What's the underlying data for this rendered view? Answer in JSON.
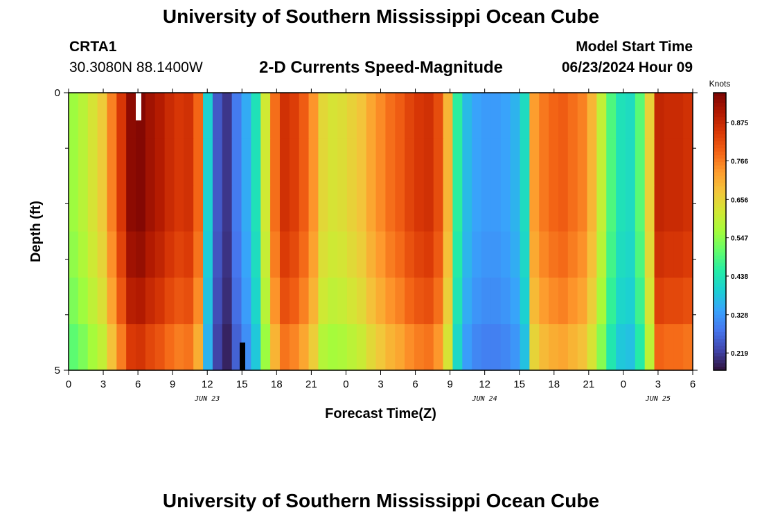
{
  "header": {
    "main_title": "University of Southern Mississippi Ocean Cube",
    "footer_title": "University of Southern Mississippi Ocean Cube",
    "station_id": "CRTA1",
    "station_coords": "30.3080N  88.1400W",
    "chart_title": "2-D Currents Speed-Magnitude",
    "model_start_label": "Model Start Time",
    "model_start_value": "06/23/2024 Hour 09"
  },
  "colors": {
    "colormap": [
      "#30123b",
      "#4145ab",
      "#4675ed",
      "#39a2fc",
      "#1bcfd4",
      "#24eca6",
      "#61fc6c",
      "#a4fc3b",
      "#d1e834",
      "#f3c63a",
      "#fe9b2d",
      "#f36315",
      "#d93806",
      "#b11901",
      "#7a0403"
    ]
  },
  "chart_data": {
    "type": "heatmap",
    "title": "2-D Currents Speed-Magnitude",
    "xlabel": "Forecast Time(Z)",
    "ylabel": "Depth (ft)",
    "colorbar_title": "Knots",
    "colorbar_ticks": [
      0.219,
      0.328,
      0.438,
      0.547,
      0.656,
      0.766,
      0.875
    ],
    "value_range": [
      0.17,
      0.96
    ],
    "x_hours_range": [
      0,
      54
    ],
    "y_range": [
      0,
      5
    ],
    "y_ticks": [
      0,
      5
    ],
    "y_minor_ticks": [
      1,
      2,
      3,
      4
    ],
    "x_ticks": [
      {
        "hour": 0,
        "label": "0"
      },
      {
        "hour": 3,
        "label": "3"
      },
      {
        "hour": 6,
        "label": "6"
      },
      {
        "hour": 9,
        "label": "9"
      },
      {
        "hour": 12,
        "label": "12"
      },
      {
        "hour": 15,
        "label": "15"
      },
      {
        "hour": 18,
        "label": "18"
      },
      {
        "hour": 21,
        "label": "21"
      },
      {
        "hour": 24,
        "label": "0"
      },
      {
        "hour": 27,
        "label": "3"
      },
      {
        "hour": 30,
        "label": "6"
      },
      {
        "hour": 33,
        "label": "9"
      },
      {
        "hour": 36,
        "label": "12"
      },
      {
        "hour": 39,
        "label": "15"
      },
      {
        "hour": 42,
        "label": "18"
      },
      {
        "hour": 45,
        "label": "21"
      },
      {
        "hour": 48,
        "label": "0"
      },
      {
        "hour": 51,
        "label": "3"
      },
      {
        "hour": 54,
        "label": "6"
      }
    ],
    "date_labels": [
      {
        "hour": 12,
        "label": "JUN 23"
      },
      {
        "hour": 36,
        "label": "JUN 24"
      },
      {
        "hour": 51,
        "label": "JUN 25"
      }
    ],
    "depth_layer_factors": [
      1.0,
      1.0,
      1.0,
      0.98,
      0.95,
      0.9
    ],
    "hourly_surface_speed": [
      0.56,
      0.59,
      0.63,
      0.67,
      0.76,
      0.85,
      0.94,
      0.95,
      0.92,
      0.9,
      0.87,
      0.85,
      0.86,
      0.79,
      0.4,
      0.25,
      0.21,
      0.29,
      0.35,
      0.43,
      0.62,
      0.78,
      0.86,
      0.84,
      0.8,
      0.74,
      0.65,
      0.63,
      0.64,
      0.66,
      0.68,
      0.72,
      0.75,
      0.78,
      0.8,
      0.83,
      0.85,
      0.86,
      0.82,
      0.7,
      0.46,
      0.37,
      0.34,
      0.33,
      0.33,
      0.34,
      0.36,
      0.42,
      0.73,
      0.77,
      0.79,
      0.8,
      0.78,
      0.76,
      0.7,
      0.6,
      0.49,
      0.43,
      0.42,
      0.5,
      0.66,
      0.88,
      0.87,
      0.87,
      0.86
    ]
  }
}
